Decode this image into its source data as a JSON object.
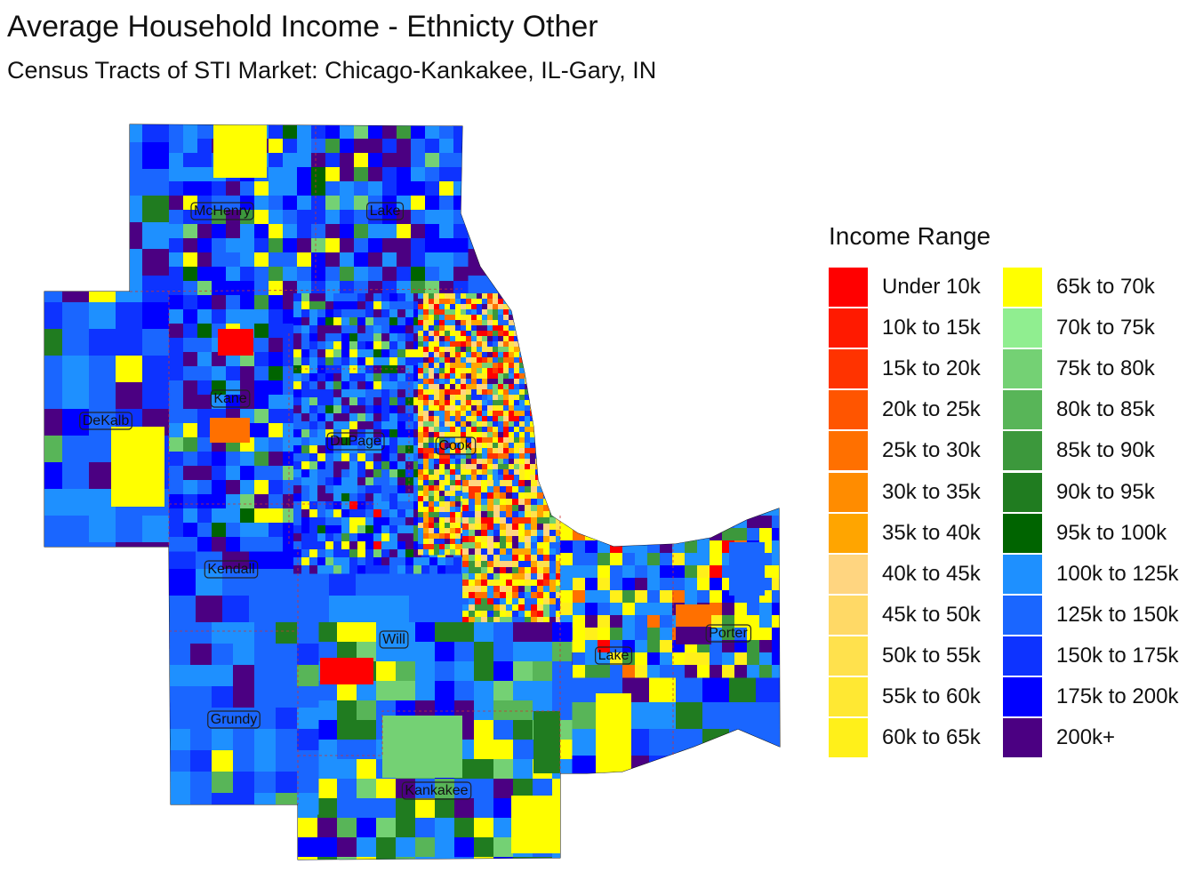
{
  "title": "Average Household Income - Ethnicty Other",
  "subtitle": "Census Tracts of STI Market: Chicago-Kankakee, IL-Gary, IN",
  "legend": {
    "title": "Income Range",
    "items": [
      {
        "label": "Under 10k",
        "color": "#FF0000"
      },
      {
        "label": "10k to 15k",
        "color": "#FF1A00"
      },
      {
        "label": "15k to 20k",
        "color": "#FF3300"
      },
      {
        "label": "20k to 25k",
        "color": "#FF5500"
      },
      {
        "label": "25k to 30k",
        "color": "#FF7000"
      },
      {
        "label": "30k to 35k",
        "color": "#FF8C00"
      },
      {
        "label": "35k to 40k",
        "color": "#FFA500"
      },
      {
        "label": "40k to 45k",
        "color": "#FFD580"
      },
      {
        "label": "45k to 50k",
        "color": "#FFD966"
      },
      {
        "label": "50k to 55k",
        "color": "#FFE14D"
      },
      {
        "label": "55k to 60k",
        "color": "#FFE833"
      },
      {
        "label": "60k to 65k",
        "color": "#FFF01A"
      },
      {
        "label": "65k to 70k",
        "color": "#FFFF00"
      },
      {
        "label": "70k to 75k",
        "color": "#90EE90"
      },
      {
        "label": "75k to 80k",
        "color": "#74D174"
      },
      {
        "label": "80k to 85k",
        "color": "#58B558"
      },
      {
        "label": "85k to 90k",
        "color": "#3C983C"
      },
      {
        "label": "90k to 95k",
        "color": "#207C20"
      },
      {
        "label": "95k to 100k",
        "color": "#006400"
      },
      {
        "label": "100k to 125k",
        "color": "#1E90FF"
      },
      {
        "label": "125k to 150k",
        "color": "#1A66FF"
      },
      {
        "label": "150k to 175k",
        "color": "#0D33FF"
      },
      {
        "label": "175k to 200k",
        "color": "#0000FF"
      },
      {
        "label": "200k+",
        "color": "#4B0082"
      }
    ]
  },
  "counties": [
    {
      "name": "McHenry"
    },
    {
      "name": "Lake"
    },
    {
      "name": "Kane"
    },
    {
      "name": "DeKalb"
    },
    {
      "name": "DuPage"
    },
    {
      "name": "Cook"
    },
    {
      "name": "Kendall"
    },
    {
      "name": "Will"
    },
    {
      "name": "Lake"
    },
    {
      "name": "Porter"
    },
    {
      "name": "Grundy"
    },
    {
      "name": "Kankakee"
    }
  ]
}
